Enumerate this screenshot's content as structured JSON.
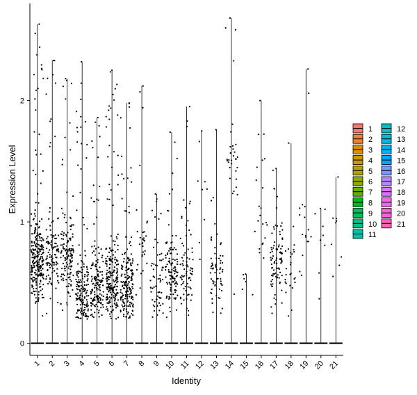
{
  "chart_data": {
    "type": "violin",
    "xlabel": "Identity",
    "ylabel": "Expression Level",
    "ylim": [
      -0.1,
      2.8
    ],
    "yticks": [
      0,
      1,
      2
    ],
    "categories": [
      "1",
      "2",
      "3",
      "4",
      "5",
      "6",
      "7",
      "8",
      "9",
      "10",
      "11",
      "12",
      "13",
      "14",
      "15",
      "16",
      "17",
      "18",
      "19",
      "20",
      "21"
    ],
    "max_values": [
      2.63,
      2.33,
      2.18,
      2.32,
      1.86,
      2.25,
      1.98,
      2.12,
      1.23,
      1.74,
      1.95,
      1.75,
      1.76,
      2.68,
      0.57,
      2.0,
      1.44,
      1.65,
      2.26,
      1.11,
      1.37
    ],
    "point_density": [
      1.0,
      0.45,
      0.55,
      0.65,
      0.6,
      0.85,
      0.75,
      0.12,
      0.25,
      0.45,
      0.3,
      0.03,
      0.25,
      0.12,
      0.02,
      0.08,
      0.35,
      0.1,
      0.06,
      0.03,
      0.03
    ],
    "point_center": [
      0.7,
      0.7,
      0.7,
      0.4,
      0.45,
      0.5,
      0.45,
      0.8,
      0.5,
      0.55,
      0.6,
      1.0,
      0.6,
      1.5,
      0.55,
      1.0,
      0.65,
      0.6,
      0.9,
      1.0,
      0.9
    ],
    "grid": false,
    "legend": {
      "placement": "right",
      "entries": [
        {
          "label": "1",
          "color": "#F8766D"
        },
        {
          "label": "2",
          "color": "#EC8239"
        },
        {
          "label": "3",
          "color": "#DB8E00"
        },
        {
          "label": "4",
          "color": "#C79800"
        },
        {
          "label": "5",
          "color": "#AEA200"
        },
        {
          "label": "6",
          "color": "#8FAA00"
        },
        {
          "label": "7",
          "color": "#64B200"
        },
        {
          "label": "8",
          "color": "#00B81B"
        },
        {
          "label": "9",
          "color": "#00BD5C"
        },
        {
          "label": "10",
          "color": "#00C085"
        },
        {
          "label": "11",
          "color": "#00C1A7"
        },
        {
          "label": "12",
          "color": "#00BFC4"
        },
        {
          "label": "13",
          "color": "#00BADE"
        },
        {
          "label": "14",
          "color": "#00B2F3"
        },
        {
          "label": "15",
          "color": "#00A6FF"
        },
        {
          "label": "16",
          "color": "#7C96FF"
        },
        {
          "label": "17",
          "color": "#B385FF"
        },
        {
          "label": "18",
          "color": "#D874FD"
        },
        {
          "label": "19",
          "color": "#EF67EB"
        },
        {
          "label": "20",
          "color": "#FD61D3"
        },
        {
          "label": "21",
          "color": "#FF63B6"
        }
      ]
    }
  }
}
